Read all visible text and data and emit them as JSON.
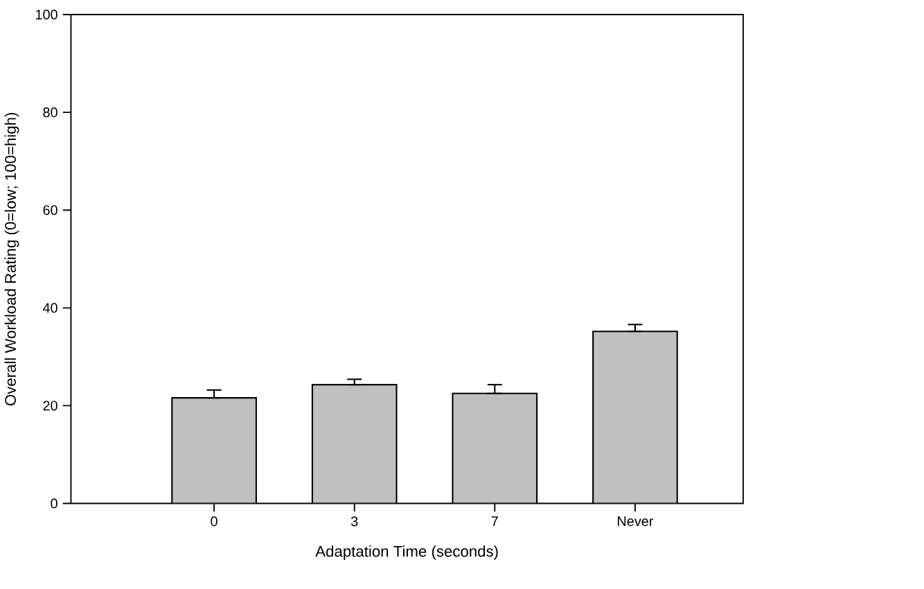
{
  "chart_data": {
    "type": "bar",
    "xlabel": "Adaptation Time (seconds)",
    "ylabel": "Overall Workload Rating (0=low; 100=high)",
    "categories": [
      "0",
      "3",
      "7",
      "Never"
    ],
    "values": [
      21.6,
      24.3,
      22.5,
      35.2
    ],
    "errors": [
      [
        21.6,
        23.2
      ],
      [
        24.3,
        25.4
      ],
      [
        22.5,
        24.3
      ],
      [
        35.2,
        36.6
      ]
    ],
    "color": "#c0c0c0",
    "ylim": [
      0,
      100
    ],
    "yticks": [
      0,
      20,
      40,
      60,
      80,
      100
    ],
    "grid": false
  }
}
